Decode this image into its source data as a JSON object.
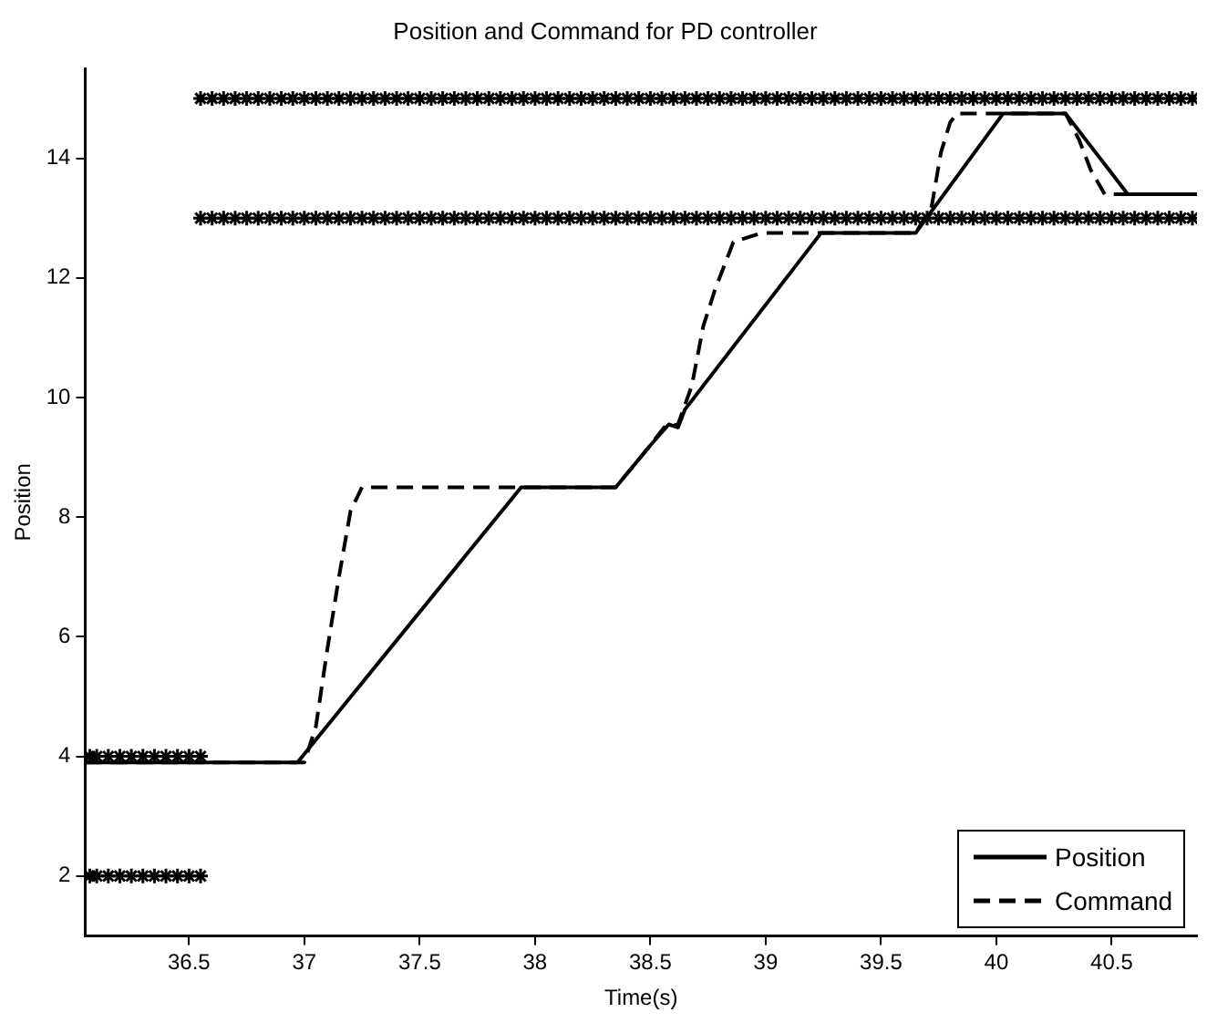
{
  "chart_data": {
    "type": "line",
    "title": "Position and Command for PD controller",
    "xlabel": "Time(s)",
    "ylabel": "Position",
    "xlim": [
      36.05,
      40.87
    ],
    "ylim": [
      1,
      15.5
    ],
    "xticks": [
      36.5,
      37,
      37.5,
      38,
      38.5,
      39,
      39.5,
      40,
      40.5
    ],
    "yticks": [
      2,
      4,
      6,
      8,
      10,
      12,
      14
    ],
    "legend": "bottom right",
    "series": [
      {
        "type": "scatter",
        "color": "#000000",
        "marker": "cross",
        "x": [
          36.55,
          36.6,
          36.65,
          36.7,
          36.75,
          36.8,
          36.85,
          36.9,
          36.95,
          37,
          37.05,
          37.1,
          37.15,
          37.2,
          37.25,
          37.3,
          37.35,
          37.4,
          37.45,
          37.5,
          37.55,
          37.6,
          37.65,
          37.7,
          37.75,
          37.8,
          37.85,
          37.9,
          37.95,
          38,
          38.05,
          38.1,
          38.15,
          38.2,
          38.25,
          38.3,
          38.35,
          38.4,
          38.45,
          38.5,
          38.55,
          38.6,
          38.65,
          38.7,
          38.75,
          38.8,
          38.85,
          38.9,
          38.95,
          39,
          39.05,
          39.1,
          39.15,
          39.2,
          39.25,
          39.3,
          39.35,
          39.4,
          39.45,
          39.5,
          39.55,
          39.6,
          39.65,
          39.7,
          39.75,
          39.8,
          39.85,
          39.9,
          39.95,
          40,
          40.05,
          40.1,
          40.15,
          40.2,
          40.25,
          40.3,
          40.35,
          40.4,
          40.45,
          40.5,
          40.55,
          40.6,
          40.65,
          40.7,
          40.75,
          40.8,
          40.85
        ],
        "values": [
          15,
          15,
          15,
          15,
          15,
          15,
          15,
          15,
          15,
          15,
          15,
          15,
          15,
          15,
          15,
          15,
          15,
          15,
          15,
          15,
          15,
          15,
          15,
          15,
          15,
          15,
          15,
          15,
          15,
          15,
          15,
          15,
          15,
          15,
          15,
          15,
          15,
          15,
          15,
          15,
          15,
          15,
          15,
          15,
          15,
          15,
          15,
          15,
          15,
          15,
          15,
          15,
          15,
          15,
          15,
          15,
          15,
          15,
          15,
          15,
          15,
          15,
          15,
          15,
          15,
          15,
          15,
          15,
          15,
          15,
          15,
          15,
          15,
          15,
          15,
          15,
          15,
          15,
          15,
          15,
          15,
          15,
          15,
          15,
          15,
          15,
          15
        ]
      },
      {
        "type": "scatter",
        "color": "#000000",
        "marker": "cross",
        "x": [
          36.55,
          36.6,
          36.65,
          36.7,
          36.75,
          36.8,
          36.85,
          36.9,
          36.95,
          37,
          37.05,
          37.1,
          37.15,
          37.2,
          37.25,
          37.3,
          37.35,
          37.4,
          37.45,
          37.5,
          37.55,
          37.6,
          37.65,
          37.7,
          37.75,
          37.8,
          37.85,
          37.9,
          37.95,
          38,
          38.05,
          38.1,
          38.15,
          38.2,
          38.25,
          38.3,
          38.35,
          38.4,
          38.45,
          38.5,
          38.55,
          38.6,
          38.65,
          38.7,
          38.75,
          38.8,
          38.85,
          38.9,
          38.95,
          39,
          39.05,
          39.1,
          39.15,
          39.2,
          39.25,
          39.3,
          39.35,
          39.4,
          39.45,
          39.5,
          39.55,
          39.6,
          39.65,
          39.7,
          39.75,
          39.8,
          39.85,
          39.9,
          39.95,
          40,
          40.05,
          40.1,
          40.15,
          40.2,
          40.25,
          40.3,
          40.35,
          40.4,
          40.45,
          40.5,
          40.55,
          40.6,
          40.65,
          40.7,
          40.75,
          40.8,
          40.85
        ],
        "values": [
          13,
          13,
          13,
          13,
          13,
          13,
          13,
          13,
          13,
          13,
          13,
          13,
          13,
          13,
          13,
          13,
          13,
          13,
          13,
          13,
          13,
          13,
          13,
          13,
          13,
          13,
          13,
          13,
          13,
          13,
          13,
          13,
          13,
          13,
          13,
          13,
          13,
          13,
          13,
          13,
          13,
          13,
          13,
          13,
          13,
          13,
          13,
          13,
          13,
          13,
          13,
          13,
          13,
          13,
          13,
          13,
          13,
          13,
          13,
          13,
          13,
          13,
          13,
          13,
          13,
          13,
          13,
          13,
          13,
          13,
          13,
          13,
          13,
          13,
          13,
          13,
          13,
          13,
          13,
          13,
          13,
          13,
          13,
          13,
          13,
          13,
          13
        ]
      },
      {
        "type": "scatter",
        "color": "#000000",
        "marker": "cross",
        "x": [
          36.07,
          36.1,
          36.15,
          36.2,
          36.25,
          36.3,
          36.35,
          36.4,
          36.45,
          36.5,
          36.55
        ],
        "values": [
          4,
          4,
          4,
          4,
          4,
          4,
          4,
          4,
          4,
          4,
          4
        ]
      },
      {
        "type": "scatter",
        "color": "#000000",
        "marker": "cross",
        "x": [
          36.07,
          36.1,
          36.15,
          36.2,
          36.25,
          36.3,
          36.35,
          36.4,
          36.45,
          36.5,
          36.55
        ],
        "values": [
          2,
          2,
          2,
          2,
          2,
          2,
          2,
          2,
          2,
          2,
          2
        ]
      },
      {
        "name": "Position",
        "color": "#000000",
        "line_style": "solid",
        "x": [
          36.05,
          36.97,
          37.94,
          38.35,
          38.5,
          38.58,
          38.62,
          38.65,
          39.24,
          39.65,
          40.03,
          40.3,
          40.57,
          40.87
        ],
        "values": [
          3.9,
          3.9,
          8.5,
          8.5,
          9.2,
          9.55,
          9.5,
          9.8,
          12.75,
          12.75,
          14.75,
          14.75,
          13.4,
          13.4
        ]
      },
      {
        "name": "Command",
        "color": "#000000",
        "line_style": "dashed",
        "x": [
          36.05,
          37,
          37.05,
          37.1,
          37.15,
          37.2,
          37.25,
          38.35,
          38.5,
          38.56,
          38.62,
          38.68,
          38.73,
          38.78,
          38.86,
          38.98,
          39.65,
          39.72,
          39.76,
          39.8,
          39.83,
          40.3,
          40.36,
          40.41,
          40.47,
          40.87
        ],
        "values": [
          3.9,
          3.9,
          4.5,
          5.8,
          7,
          8.1,
          8.5,
          8.5,
          9.2,
          9.5,
          9.55,
          10.2,
          11.2,
          11.8,
          12.6,
          12.75,
          12.75,
          13.2,
          14.1,
          14.6,
          14.75,
          14.75,
          14.3,
          13.8,
          13.4,
          13.4
        ]
      }
    ]
  }
}
